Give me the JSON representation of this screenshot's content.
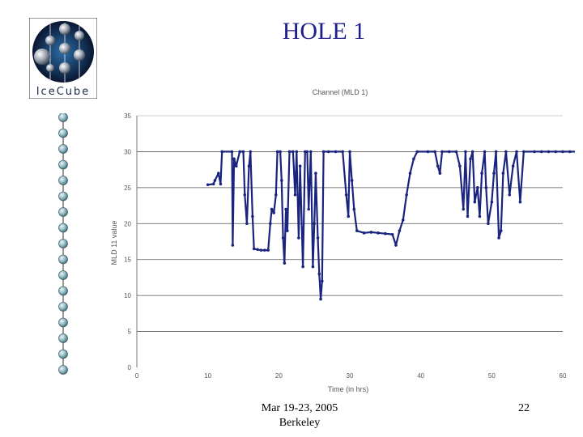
{
  "slide": {
    "title": "HOLE 1",
    "logo_text": "IceCube",
    "footer_date": "Mar 19-23, 2005",
    "footer_place": "Berkeley",
    "page_number": "22"
  },
  "chart_data": {
    "type": "scatter",
    "title": "Channel (MLD 1)",
    "xlabel": "Time (in hrs)",
    "ylabel": "MLD 11 value",
    "xlim": [
      0,
      60
    ],
    "ylim": [
      0,
      35
    ],
    "xticks": [
      0,
      10,
      20,
      30,
      40,
      50,
      60
    ],
    "yticks": [
      0,
      5,
      10,
      15,
      20,
      25,
      30,
      35
    ],
    "grid": "horizontal",
    "marker_color": "#1a237e",
    "series": [
      {
        "points": [
          [
            10,
            25.4
          ],
          [
            10.8,
            25.5
          ],
          [
            11,
            26
          ],
          [
            11.5,
            27
          ],
          [
            11.8,
            25.5
          ],
          [
            12,
            30
          ],
          [
            13.4,
            30
          ],
          [
            13.5,
            17
          ],
          [
            13.7,
            29
          ],
          [
            14,
            28
          ],
          [
            14.5,
            30
          ],
          [
            15,
            30
          ],
          [
            15.2,
            24
          ],
          [
            15.5,
            20
          ],
          [
            15.8,
            28
          ],
          [
            16,
            30
          ],
          [
            16.3,
            21
          ],
          [
            16.5,
            16.5
          ],
          [
            17,
            16.4
          ],
          [
            17.5,
            16.3
          ],
          [
            18,
            16.3
          ],
          [
            18.5,
            16.3
          ],
          [
            18.8,
            20
          ],
          [
            19,
            22
          ],
          [
            19.3,
            21.5
          ],
          [
            19.6,
            24
          ],
          [
            19.8,
            30
          ],
          [
            20.2,
            30
          ],
          [
            20.4,
            26
          ],
          [
            20.6,
            18
          ],
          [
            20.8,
            14.5
          ],
          [
            21,
            22
          ],
          [
            21.2,
            19
          ],
          [
            21.5,
            30
          ],
          [
            22,
            30
          ],
          [
            22.3,
            24
          ],
          [
            22.5,
            30
          ],
          [
            22.8,
            18
          ],
          [
            23,
            28
          ],
          [
            23.4,
            14
          ],
          [
            23.7,
            30
          ],
          [
            24,
            30
          ],
          [
            24.2,
            22
          ],
          [
            24.5,
            30
          ],
          [
            24.8,
            14
          ],
          [
            25,
            20
          ],
          [
            25.2,
            27
          ],
          [
            25.5,
            18
          ],
          [
            25.7,
            13
          ],
          [
            25.9,
            9.5
          ],
          [
            26.1,
            12
          ],
          [
            26.3,
            30
          ],
          [
            27,
            30
          ],
          [
            28,
            30
          ],
          [
            29,
            30
          ],
          [
            29.5,
            24
          ],
          [
            29.8,
            21
          ],
          [
            30,
            30
          ],
          [
            30.3,
            26
          ],
          [
            30.6,
            22
          ],
          [
            31,
            19
          ],
          [
            32,
            18.7
          ],
          [
            33,
            18.8
          ],
          [
            34,
            18.7
          ],
          [
            35,
            18.6
          ],
          [
            36,
            18.5
          ],
          [
            36.5,
            17
          ],
          [
            37,
            19
          ],
          [
            37.5,
            20.5
          ],
          [
            38,
            24
          ],
          [
            38.5,
            27
          ],
          [
            39,
            29
          ],
          [
            39.5,
            30
          ],
          [
            41,
            30
          ],
          [
            42,
            30
          ],
          [
            42.4,
            28
          ],
          [
            42.7,
            27
          ],
          [
            43,
            30
          ],
          [
            44,
            30
          ],
          [
            45,
            30
          ],
          [
            45.5,
            28
          ],
          [
            46,
            22
          ],
          [
            46.3,
            30
          ],
          [
            46.6,
            21
          ],
          [
            47,
            29
          ],
          [
            47.3,
            30
          ],
          [
            47.6,
            23
          ],
          [
            48,
            25
          ],
          [
            48.3,
            21
          ],
          [
            48.6,
            27
          ],
          [
            49,
            30
          ],
          [
            49.2,
            25
          ],
          [
            49.5,
            20
          ],
          [
            50,
            23
          ],
          [
            50.3,
            27
          ],
          [
            50.6,
            30
          ],
          [
            51,
            18
          ],
          [
            51.3,
            19
          ],
          [
            51.6,
            27
          ],
          [
            52,
            30
          ],
          [
            52.5,
            24
          ],
          [
            53,
            28
          ],
          [
            53.5,
            30
          ],
          [
            54,
            23
          ],
          [
            54.5,
            30
          ],
          [
            56,
            30
          ],
          [
            57,
            30
          ],
          [
            58,
            30
          ],
          [
            59,
            30
          ],
          [
            60,
            30
          ],
          [
            61,
            30
          ],
          [
            62,
            30
          ],
          [
            62.5,
            30
          ]
        ]
      }
    ]
  }
}
